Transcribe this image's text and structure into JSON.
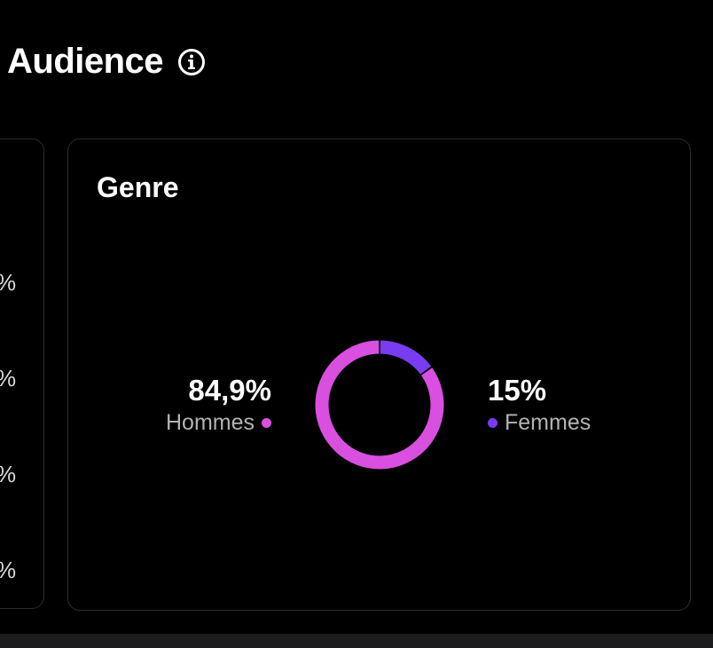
{
  "header": {
    "title": "Audience",
    "info_icon": "info-circle-icon"
  },
  "left_card": {
    "percent_fragments": [
      "%",
      "%",
      "%",
      "%"
    ]
  },
  "genre_card": {
    "title": "Genre",
    "men": {
      "value": "84,9%",
      "label": "Hommes",
      "color": "#d94fe0"
    },
    "women": {
      "value": "15%",
      "label": "Femmes",
      "color": "#7a3cf0"
    }
  },
  "chart_data": {
    "type": "pie",
    "categories": [
      "Hommes",
      "Femmes"
    ],
    "values": [
      84.9,
      15
    ],
    "colors": [
      "#d94fe0",
      "#7a3cf0"
    ]
  }
}
